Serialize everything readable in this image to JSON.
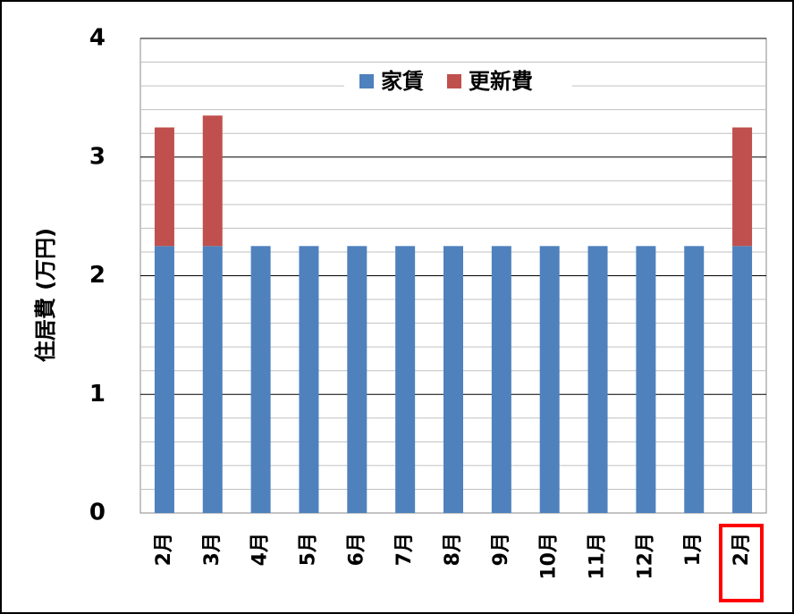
{
  "chart_data": {
    "type": "stacked_bar",
    "y_label": "住居費 (万円)",
    "categories": [
      "2月",
      "3月",
      "4月",
      "5月",
      "6月",
      "7月",
      "8月",
      "9月",
      "10月",
      "11月",
      "12月",
      "1月",
      "2月"
    ],
    "series": [
      {
        "name": "家賃",
        "color": "#4f81bd",
        "values": [
          2.25,
          2.25,
          2.25,
          2.25,
          2.25,
          2.25,
          2.25,
          2.25,
          2.25,
          2.25,
          2.25,
          2.25,
          2.25
        ]
      },
      {
        "name": "更新費",
        "color": "#c0504d",
        "values": [
          1.0,
          1.1,
          0,
          0,
          0,
          0,
          0,
          0,
          0,
          0,
          0,
          0,
          1.0
        ]
      }
    ],
    "ylim": [
      0,
      4
    ],
    "yticks": [
      0,
      1,
      2,
      3,
      4
    ],
    "minor_yticks": [
      0.2,
      0.4,
      0.6,
      0.8,
      1.2,
      1.4,
      1.6,
      1.8,
      2.2,
      2.4,
      2.6,
      2.8,
      3.2,
      3.4,
      3.6,
      3.8
    ],
    "grid": true,
    "legend": "top"
  }
}
